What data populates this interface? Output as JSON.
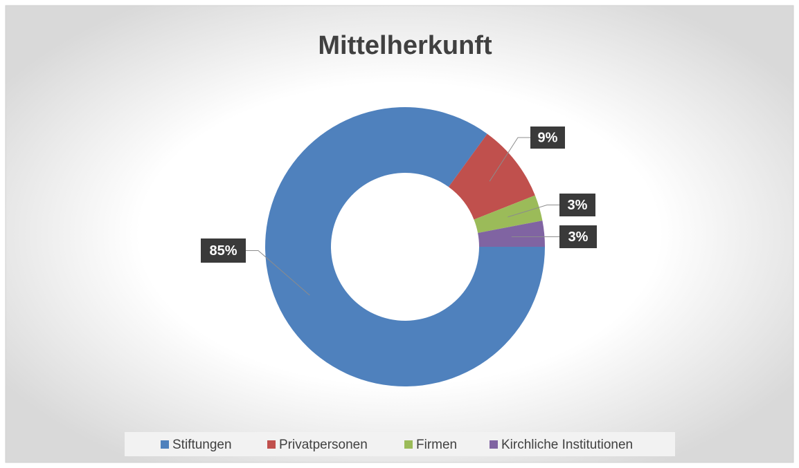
{
  "chart_data": {
    "type": "donut",
    "title": "Mittelherkunft",
    "categories": [
      "Stiftungen",
      "Privatpersonen",
      "Firmen",
      "Kirchliche Institutionen"
    ],
    "values": [
      85,
      9,
      3,
      3
    ],
    "value_labels": [
      "85%",
      "9%",
      "3%",
      "3%"
    ],
    "colors": [
      "#4f81bd",
      "#c0504d",
      "#9bbb59",
      "#8064a2"
    ],
    "legend": "bottom"
  }
}
